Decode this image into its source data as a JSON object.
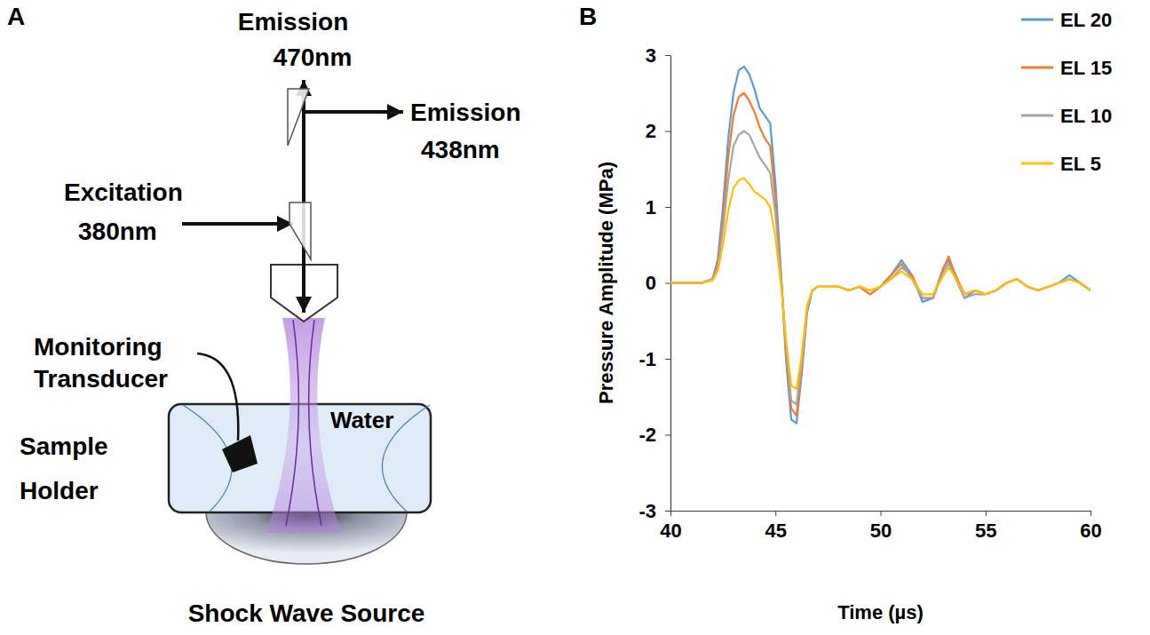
{
  "diagram": {
    "panel": "A",
    "emission_470": [
      "Emission",
      "470nm"
    ],
    "emission_438": [
      "Emission",
      "438nm"
    ],
    "excitation": [
      "Excitation",
      "380nm"
    ],
    "transducer": [
      "Monitoring",
      "Transducer"
    ],
    "water": "Water",
    "holder": [
      "Sample",
      "Holder"
    ],
    "source": "Shock Wave Source"
  },
  "chart_data": {
    "type": "line",
    "panel": "B",
    "xlabel": "Time (µs)",
    "ylabel": "Pressure Amplitude (MPa)",
    "x": [
      40,
      41,
      41.5,
      42,
      42.25,
      42.5,
      42.75,
      43,
      43.25,
      43.5,
      43.75,
      44,
      44.25,
      44.5,
      44.75,
      45,
      45.25,
      45.5,
      45.75,
      46,
      46.25,
      46.5,
      46.75,
      47,
      47.5,
      48,
      48.5,
      49,
      49.5,
      50,
      50.5,
      51,
      51.25,
      51.5,
      52,
      52.5,
      53,
      53.25,
      53.5,
      54,
      54.5,
      55,
      55.5,
      56,
      56.5,
      57,
      57.5,
      58,
      58.5,
      59,
      59.5,
      60
    ],
    "series": [
      {
        "name": "EL 20",
        "color": "#5b9bd5",
        "values": [
          0,
          0,
          0,
          0.05,
          0.3,
          1.0,
          1.9,
          2.5,
          2.8,
          2.85,
          2.75,
          2.55,
          2.3,
          2.2,
          2.1,
          1.3,
          0.2,
          -1.0,
          -1.8,
          -1.85,
          -1.2,
          -0.4,
          -0.1,
          -0.05,
          -0.05,
          -0.05,
          -0.1,
          -0.05,
          -0.15,
          -0.05,
          0.1,
          0.3,
          0.2,
          0.1,
          -0.25,
          -0.2,
          0.2,
          0.3,
          0.15,
          -0.2,
          -0.1,
          -0.15,
          -0.1,
          0.0,
          0.05,
          -0.05,
          -0.1,
          -0.05,
          0.0,
          0.1,
          0.0,
          -0.1
        ]
      },
      {
        "name": "EL 15",
        "color": "#ed7d31",
        "values": [
          0,
          0,
          0,
          0.05,
          0.25,
          0.85,
          1.65,
          2.2,
          2.45,
          2.5,
          2.4,
          2.25,
          2.05,
          1.9,
          1.8,
          1.1,
          0.15,
          -0.9,
          -1.65,
          -1.75,
          -1.15,
          -0.35,
          -0.1,
          -0.05,
          -0.05,
          -0.05,
          -0.1,
          -0.05,
          -0.15,
          -0.05,
          0.1,
          0.25,
          0.15,
          0.1,
          -0.2,
          -0.2,
          0.2,
          0.35,
          0.15,
          -0.15,
          -0.1,
          -0.15,
          -0.1,
          0.0,
          0.05,
          -0.05,
          -0.1,
          -0.05,
          0.0,
          0.05,
          0.0,
          -0.1
        ]
      },
      {
        "name": "EL 10",
        "color": "#a5a5a5",
        "values": [
          0,
          0,
          0,
          0.05,
          0.2,
          0.7,
          1.35,
          1.8,
          1.95,
          2.0,
          1.95,
          1.8,
          1.65,
          1.55,
          1.45,
          0.9,
          0.1,
          -0.8,
          -1.55,
          -1.6,
          -1.05,
          -0.35,
          -0.1,
          -0.05,
          -0.05,
          -0.05,
          -0.1,
          -0.05,
          -0.1,
          -0.05,
          0.05,
          0.2,
          0.15,
          0.05,
          -0.2,
          -0.2,
          0.15,
          0.25,
          0.1,
          -0.2,
          -0.15,
          -0.15,
          -0.1,
          0.0,
          0.05,
          -0.05,
          -0.1,
          -0.05,
          0.0,
          0.05,
          0.0,
          -0.1
        ]
      },
      {
        "name": "EL 5",
        "color": "#ffc000",
        "values": [
          0,
          0,
          0,
          0.03,
          0.15,
          0.5,
          0.95,
          1.25,
          1.35,
          1.38,
          1.3,
          1.2,
          1.15,
          1.1,
          1.0,
          0.6,
          0.0,
          -0.75,
          -1.35,
          -1.4,
          -0.95,
          -0.3,
          -0.1,
          -0.05,
          -0.05,
          -0.05,
          -0.1,
          -0.05,
          -0.1,
          -0.05,
          0.05,
          0.15,
          0.1,
          0.05,
          -0.15,
          -0.15,
          0.1,
          0.2,
          0.1,
          -0.15,
          -0.1,
          -0.15,
          -0.1,
          0.0,
          0.05,
          -0.05,
          -0.1,
          -0.05,
          0.0,
          0.05,
          0.0,
          -0.1
        ]
      }
    ],
    "xlim": [
      40,
      60
    ],
    "xticks": [
      40,
      45,
      50,
      55,
      60
    ],
    "ylim": [
      -3,
      3
    ],
    "yticks": [
      -3,
      -2,
      -1,
      0,
      1,
      2,
      3
    ],
    "legend": "top-right",
    "grid": false
  }
}
